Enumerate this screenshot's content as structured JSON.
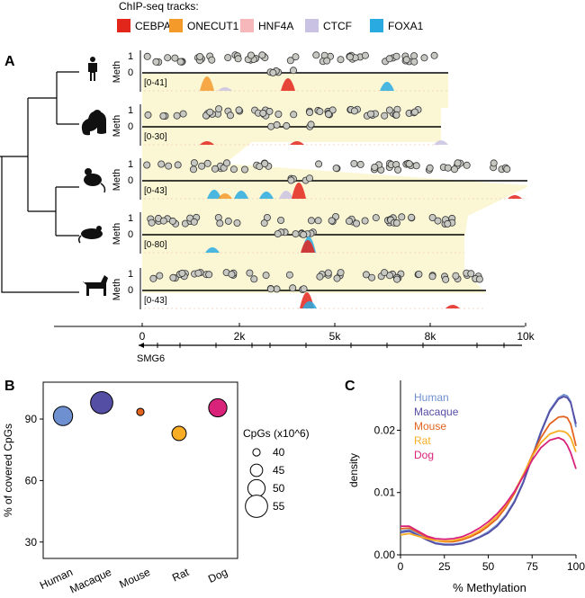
{
  "legend": {
    "title": "ChIP-seq tracks:",
    "items": [
      {
        "label": "CEBPA",
        "color": "#e3261c"
      },
      {
        "label": "ONECUT1",
        "color": "#f39a2b"
      },
      {
        "label": "HNF4A",
        "color": "#f7b8bb"
      },
      {
        "label": "CTCF",
        "color": "#c9c2e2"
      },
      {
        "label": "FOXA1",
        "color": "#29abe2"
      }
    ]
  },
  "panelA": {
    "label": "A",
    "meth_label": "Meth",
    "tick_one": "1",
    "tick_zero": "0",
    "tracks": [
      {
        "species": "Human",
        "icon": "human-icon",
        "range": "[0-41]"
      },
      {
        "species": "Macaque",
        "icon": "macaque-icon",
        "range": "[0-30]"
      },
      {
        "species": "Mouse",
        "icon": "mouse-icon",
        "range": "[0-43]"
      },
      {
        "species": "Rat",
        "icon": "rat-icon",
        "range": "[0-80]"
      },
      {
        "species": "Dog",
        "icon": "dog-icon",
        "range": "[0-43]"
      }
    ],
    "axis_ticks": [
      "0",
      "2k",
      "5k",
      "8k",
      "10k"
    ],
    "gene": "SMG6",
    "highlight_color": "#fbf7d5"
  },
  "panelB": {
    "label": "B",
    "ylabel": "% of covered CpGs",
    "size_legend_title": "CpGs (x10^6)",
    "size_legend": [
      "40",
      "45",
      "50",
      "55"
    ],
    "chart_data": {
      "type": "scatter",
      "categories": [
        "Human",
        "Macaque",
        "Mouse",
        "Rat",
        "Dog"
      ],
      "yticks": [
        "30",
        "60",
        "90"
      ],
      "ylim": [
        22,
        108
      ],
      "series": [
        {
          "values": [
            91.5,
            98,
            93.5,
            83,
            95.5
          ],
          "cpgs": [
            52,
            55,
            40,
            47,
            51
          ],
          "colors": [
            "#6e8fd0",
            "#554ea5",
            "#e3641f",
            "#f9ad25",
            "#d9227a"
          ]
        }
      ]
    }
  },
  "panelC": {
    "label": "C",
    "xlabel": "% Methylation",
    "ylabel": "density",
    "chart_data": {
      "type": "line",
      "xlim": [
        0,
        100
      ],
      "ylim": [
        0,
        0.028
      ],
      "xticks": [
        "0",
        "25",
        "50",
        "75",
        "100"
      ],
      "yticks": [
        "0.00",
        "0.01",
        "0.02"
      ],
      "x": [
        0,
        5,
        10,
        15,
        20,
        25,
        30,
        35,
        40,
        45,
        50,
        55,
        60,
        65,
        70,
        75,
        80,
        85,
        90,
        93,
        95,
        97,
        100
      ],
      "series": [
        {
          "name": "Human",
          "color": "#6e8fd0",
          "values": [
            0.0038,
            0.004,
            0.0033,
            0.0025,
            0.0019,
            0.0017,
            0.0017,
            0.0019,
            0.0023,
            0.0029,
            0.0037,
            0.0048,
            0.0064,
            0.0087,
            0.0118,
            0.0158,
            0.0198,
            0.0232,
            0.0252,
            0.0257,
            0.0255,
            0.0246,
            0.0205
          ]
        },
        {
          "name": "Macaque",
          "color": "#554ea5",
          "values": [
            0.0036,
            0.0038,
            0.0031,
            0.0024,
            0.0018,
            0.0016,
            0.0016,
            0.0018,
            0.0022,
            0.0028,
            0.0035,
            0.0046,
            0.0062,
            0.0085,
            0.0116,
            0.0156,
            0.0196,
            0.023,
            0.025,
            0.0254,
            0.0252,
            0.0244,
            0.021
          ]
        },
        {
          "name": "Mouse",
          "color": "#e3641f",
          "values": [
            0.0042,
            0.0043,
            0.0036,
            0.0028,
            0.0023,
            0.0021,
            0.0021,
            0.0024,
            0.0029,
            0.0036,
            0.0046,
            0.0058,
            0.0076,
            0.0099,
            0.0128,
            0.016,
            0.0188,
            0.021,
            0.0221,
            0.0222,
            0.022,
            0.021,
            0.0175
          ]
        },
        {
          "name": "Rat",
          "color": "#f9ad25",
          "values": [
            0.0032,
            0.0034,
            0.003,
            0.0026,
            0.0023,
            0.0022,
            0.0023,
            0.0026,
            0.0031,
            0.0039,
            0.0049,
            0.0062,
            0.008,
            0.0102,
            0.0129,
            0.0158,
            0.018,
            0.0194,
            0.0199,
            0.0198,
            0.0195,
            0.0188,
            0.0165
          ]
        },
        {
          "name": "Dog",
          "color": "#d9227a",
          "values": [
            0.0046,
            0.0046,
            0.0038,
            0.003,
            0.0026,
            0.0025,
            0.0026,
            0.0029,
            0.0035,
            0.0043,
            0.0053,
            0.0066,
            0.0082,
            0.0102,
            0.0126,
            0.0152,
            0.0172,
            0.0184,
            0.0188,
            0.0184,
            0.0176,
            0.0164,
            0.0138
          ]
        }
      ]
    }
  }
}
